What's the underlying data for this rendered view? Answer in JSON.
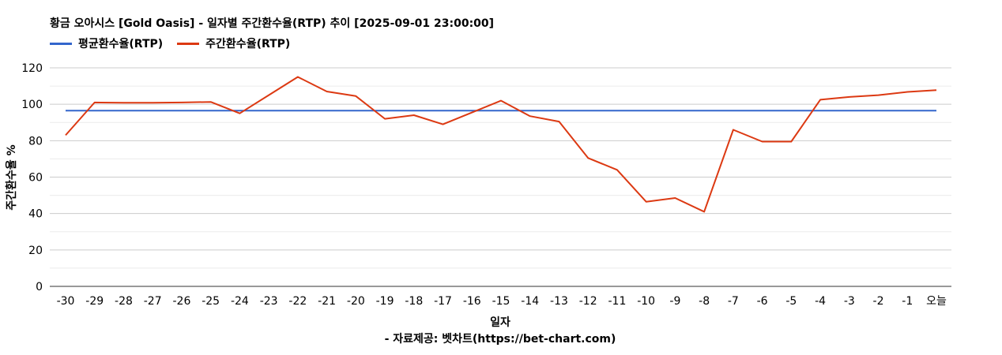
{
  "chart_data": {
    "type": "line",
    "title": "황금 오아시스 [Gold Oasis] - 일자별 주간환수율(RTP) 추이 [2025-09-01 23:00:00]",
    "xlabel": "일자",
    "ylabel": "주간환수율 %",
    "source": "- 자료제공: 벳차트(https://bet-chart.com)",
    "categories": [
      "-30",
      "-29",
      "-28",
      "-27",
      "-26",
      "-25",
      "-24",
      "-23",
      "-22",
      "-21",
      "-20",
      "-19",
      "-18",
      "-17",
      "-16",
      "-15",
      "-14",
      "-13",
      "-12",
      "-11",
      "-10",
      "-9",
      "-8",
      "-7",
      "-6",
      "-5",
      "-4",
      "-3",
      "-2",
      "-1",
      "오늘"
    ],
    "ylim": [
      0,
      120
    ],
    "yticks": [
      0,
      20,
      40,
      60,
      80,
      100,
      120
    ],
    "legend_position": "top-left",
    "grid": true,
    "series": [
      {
        "name": "평균환수율(RTP)",
        "color": "#3366cc",
        "values": [
          96.5,
          96.5,
          96.5,
          96.5,
          96.5,
          96.5,
          96.5,
          96.5,
          96.5,
          96.5,
          96.5,
          96.5,
          96.5,
          96.5,
          96.5,
          96.5,
          96.5,
          96.5,
          96.5,
          96.5,
          96.5,
          96.5,
          96.5,
          96.5,
          96.5,
          96.5,
          96.5,
          96.5,
          96.5,
          96.5,
          96.5
        ]
      },
      {
        "name": "주간환수율(RTP)",
        "color": "#dc3912",
        "values": [
          83,
          101,
          100.8,
          100.8,
          101,
          101.3,
          95,
          105,
          115,
          107,
          104.5,
          92,
          94,
          89,
          95.5,
          102,
          93.5,
          90.5,
          70.5,
          64,
          46.5,
          48.5,
          41,
          86,
          79.5,
          79.5,
          102.5,
          104,
          105,
          106.8,
          107.8
        ]
      }
    ]
  }
}
